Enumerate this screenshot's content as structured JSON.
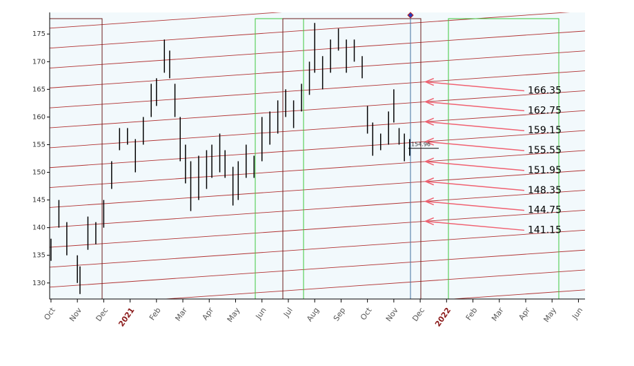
{
  "chart_data": {
    "type": "range",
    "color": "#000000",
    "x": [
      0,
      0.3,
      0.6,
      1.0,
      1.1,
      1.4,
      1.7,
      2.0,
      2.3,
      2.6,
      2.9,
      3.2,
      3.5,
      3.8,
      4.0,
      4.3,
      4.5,
      4.7,
      4.9,
      5.1,
      5.3,
      5.6,
      5.9,
      6.1,
      6.4,
      6.6,
      6.9,
      7.1,
      7.4,
      7.7,
      8.0,
      8.3,
      8.6,
      8.9,
      9.2,
      9.5,
      9.8,
      10.0,
      10.3,
      10.6,
      10.9,
      11.2,
      11.5,
      11.8,
      12.0,
      12.2,
      12.5,
      12.8,
      13.0,
      13.2,
      13.4,
      13.6
    ],
    "high": [
      138,
      145,
      141,
      135,
      133,
      142,
      141,
      145,
      152,
      158,
      158,
      156,
      160,
      166,
      167,
      174,
      172,
      166,
      160,
      155,
      152,
      153,
      154,
      155,
      157,
      154,
      151,
      152,
      155,
      153,
      160,
      161,
      163,
      165,
      163,
      166,
      170,
      177,
      171,
      174,
      176,
      174,
      174,
      171,
      162,
      159,
      157,
      161,
      165,
      158,
      157,
      156
    ],
    "low": [
      134,
      140,
      135,
      130,
      128,
      136,
      137,
      140,
      147,
      154,
      155,
      150,
      155,
      160,
      162,
      168,
      167,
      160,
      152,
      148,
      143,
      145,
      147,
      149,
      150,
      149,
      144,
      145,
      149,
      149,
      152,
      155,
      157,
      160,
      158,
      161,
      164,
      168,
      165,
      168,
      172,
      168,
      170,
      167,
      157,
      153,
      154,
      155,
      159,
      155,
      152,
      153
    ],
    "xlim": [
      -0.05,
      20.25
    ],
    "xticks": [
      {
        "value": 0,
        "label": "Oct"
      },
      {
        "value": 1,
        "label": "Nov"
      },
      {
        "value": 2,
        "label": "Dec"
      },
      {
        "value": 3,
        "label": "2021"
      },
      {
        "value": 4,
        "label": "Feb"
      },
      {
        "value": 5,
        "label": "Mar"
      },
      {
        "value": 6,
        "label": "Apr"
      },
      {
        "value": 7,
        "label": "May"
      },
      {
        "value": 8,
        "label": "Jun"
      },
      {
        "value": 9,
        "label": "Jul"
      },
      {
        "value": 10,
        "label": "Aug"
      },
      {
        "value": 11,
        "label": "Sep"
      },
      {
        "value": 12,
        "label": "Oct"
      },
      {
        "value": 13,
        "label": "Nov"
      },
      {
        "value": 14,
        "label": "Dec"
      },
      {
        "value": 15,
        "label": "2022"
      },
      {
        "value": 16,
        "label": "Feb"
      },
      {
        "value": 17,
        "label": "Mar"
      },
      {
        "value": 18,
        "label": "Apr"
      },
      {
        "value": 19,
        "label": "May"
      },
      {
        "value": 20,
        "label": "Jun"
      }
    ],
    "ylim": [
      127.1,
      178.9
    ],
    "yticks": [
      130,
      135,
      140,
      145,
      150,
      155,
      160,
      165,
      170,
      175
    ],
    "channel": {
      "color": "#b03030",
      "anchor_x": 14.2,
      "slope": 0.33,
      "levels": [
        119.55,
        123.15,
        126.75,
        130.35,
        133.95,
        137.55,
        141.15,
        144.75,
        148.35,
        151.95,
        155.55,
        159.15,
        162.75,
        166.35,
        169.95,
        173.55,
        177.15,
        180.75,
        184.35
      ]
    },
    "annotations": [
      166.35,
      162.75,
      159.15,
      155.55,
      151.95,
      148.35,
      144.75,
      141.15
    ],
    "annotation_color": "#f06070",
    "last_price": 154.96
  }
}
